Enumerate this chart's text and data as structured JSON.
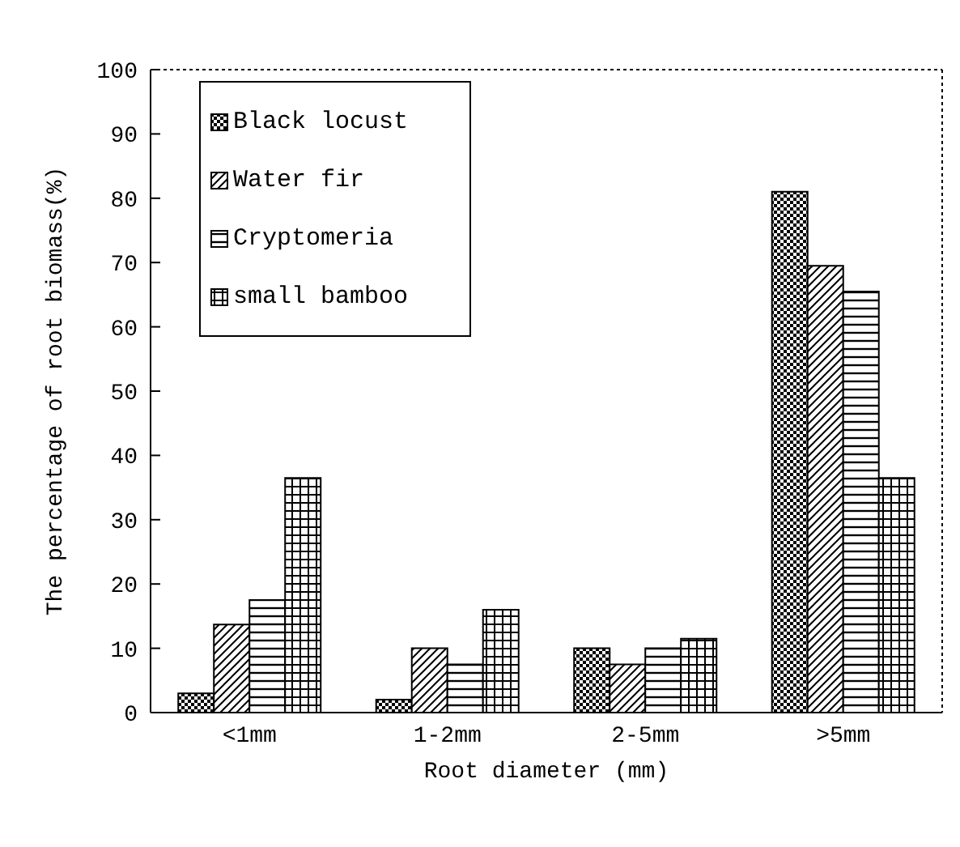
{
  "chart_data": {
    "type": "bar",
    "xlabel": "Root diameter (mm)",
    "ylabel": "The percentage of root biomass(%)",
    "categories": [
      "<1mm",
      "1-2mm",
      "2-5mm",
      ">5mm"
    ],
    "series": [
      {
        "name": "Black locust",
        "color": "#000000",
        "values": [
          3,
          2,
          10,
          81
        ]
      },
      {
        "name": "Water fir",
        "color": "#000000",
        "values": [
          13.7,
          10,
          7.5,
          69.5
        ]
      },
      {
        "name": "Cryptomeria",
        "color": "#000000",
        "values": [
          17.5,
          7.5,
          10,
          65.5
        ]
      },
      {
        "name": "small bamboo",
        "color": "#000000",
        "values": [
          36.5,
          16,
          11.5,
          36.5
        ]
      }
    ],
    "ylim": [
      0,
      100
    ],
    "yticks": [
      0,
      10,
      20,
      30,
      40,
      50,
      60,
      70,
      80,
      90,
      100
    ],
    "grid": false,
    "legend": "top left"
  }
}
